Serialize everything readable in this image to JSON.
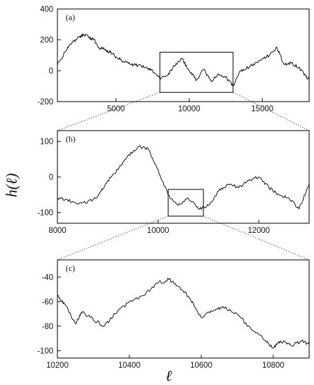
{
  "figure": {
    "ylabel": "h(ℓ)",
    "xlabel": "ℓ"
  },
  "chart_data": [
    {
      "type": "line",
      "panel_label": "(a)",
      "xlim": [
        1000,
        18200
      ],
      "ylim": [
        -200,
        400
      ],
      "xticks": [
        5000,
        10000,
        15000
      ],
      "xtick_labels": [
        "5000",
        "10000",
        "15000"
      ],
      "yticks": [
        -200,
        0,
        200,
        400
      ],
      "ytick_labels": [
        "-200",
        "0",
        "200",
        "400"
      ],
      "zoom_box": {
        "x": [
          8000,
          13000
        ],
        "y": [
          -140,
          120
        ]
      },
      "series": [
        {
          "x": [
            1000,
            1500,
            2000,
            2500,
            2800,
            3200,
            3500,
            3800,
            4200,
            4600,
            5000,
            5500,
            6000,
            6500,
            7000,
            7500,
            8000,
            8500,
            9000,
            9500,
            10000,
            10500,
            11000,
            11500,
            12000,
            12500,
            13000,
            13500,
            14000,
            14500,
            15000,
            15500,
            16000,
            16500,
            17000,
            17500,
            18000,
            18200
          ],
          "y": [
            40,
            120,
            180,
            220,
            235,
            215,
            200,
            150,
            140,
            120,
            90,
            60,
            40,
            35,
            20,
            0,
            -50,
            -30,
            30,
            80,
            0,
            -60,
            10,
            -70,
            -20,
            -40,
            -100,
            0,
            20,
            50,
            80,
            100,
            150,
            40,
            50,
            20,
            -40,
            -50
          ]
        }
      ]
    },
    {
      "type": "line",
      "panel_label": "(b)",
      "xlim": [
        8000,
        13000
      ],
      "ylim": [
        -130,
        130
      ],
      "xticks": [
        8000,
        10000,
        12000
      ],
      "xtick_labels": [
        "8000",
        "10000",
        "12000"
      ],
      "yticks": [
        -100,
        0,
        100
      ],
      "ytick_labels": [
        "-100",
        "0",
        "100"
      ],
      "zoom_box": {
        "x": [
          10200,
          10900
        ],
        "y": [
          -110,
          -35
        ]
      },
      "series": [
        {
          "x": [
            8000,
            8200,
            8400,
            8600,
            8800,
            9000,
            9200,
            9400,
            9600,
            9800,
            10000,
            10200,
            10400,
            10600,
            10800,
            11000,
            11200,
            11400,
            11600,
            11800,
            12000,
            12200,
            12400,
            12600,
            12800,
            13000
          ],
          "y": [
            -60,
            -65,
            -75,
            -70,
            -55,
            -10,
            20,
            60,
            85,
            80,
            20,
            -50,
            -80,
            -60,
            -90,
            -80,
            -40,
            -20,
            -30,
            -10,
            0,
            -30,
            -50,
            -60,
            -90,
            -20
          ]
        }
      ]
    },
    {
      "type": "line",
      "panel_label": "(c)",
      "xlim": [
        10200,
        10900
      ],
      "ylim": [
        -106,
        -26
      ],
      "xticks": [
        10200,
        10400,
        10600,
        10800
      ],
      "xtick_labels": [
        "10200",
        "10400",
        "10600",
        "10800"
      ],
      "yticks": [
        -100,
        -80,
        -60,
        -40
      ],
      "ytick_labels": [
        "-100",
        "-80",
        "-60",
        "-40"
      ],
      "series": [
        {
          "x": [
            10200,
            10220,
            10250,
            10270,
            10300,
            10330,
            10360,
            10400,
            10440,
            10480,
            10510,
            10540,
            10570,
            10600,
            10630,
            10660,
            10700,
            10740,
            10780,
            10800,
            10820,
            10850,
            10880,
            10900
          ],
          "y": [
            -55,
            -62,
            -78,
            -68,
            -75,
            -80,
            -70,
            -60,
            -55,
            -45,
            -42,
            -48,
            -58,
            -73,
            -68,
            -64,
            -70,
            -83,
            -92,
            -98,
            -92,
            -96,
            -92,
            -95
          ]
        }
      ]
    }
  ]
}
